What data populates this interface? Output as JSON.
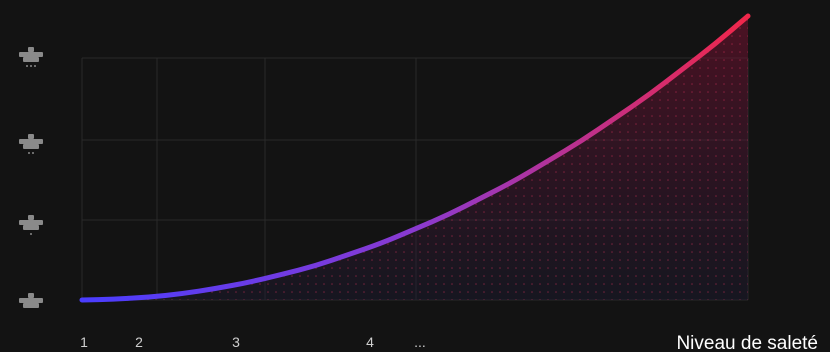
{
  "chart_data": {
    "type": "area",
    "x_tick_labels": [
      "1",
      "2",
      "3",
      "4",
      "..."
    ],
    "x_label": "Niveau de saleté",
    "y_levels": [
      {
        "icon": "spray-head-icon",
        "drops": 0
      },
      {
        "icon": "spray-head-icon",
        "drops": 1
      },
      {
        "icon": "spray-head-icon",
        "drops": 2
      },
      {
        "icon": "spray-head-icon",
        "drops": 3
      }
    ],
    "series": [
      {
        "x": [
          0,
          0.05,
          0.1,
          0.15,
          0.2,
          0.25,
          0.3,
          0.35,
          0.4,
          0.45,
          0.5,
          0.55,
          0.6,
          0.65,
          0.7,
          0.75,
          0.8,
          0.85,
          0.9,
          0.95,
          1
        ],
        "y": [
          0,
          0.003,
          0.01,
          0.022,
          0.04,
          0.062,
          0.09,
          0.12,
          0.16,
          0.2,
          0.25,
          0.3,
          0.36,
          0.42,
          0.49,
          0.56,
          0.64,
          0.72,
          0.81,
          0.9,
          1
        ]
      }
    ],
    "colors": {
      "background": "#131313",
      "grid": "#2a2a2a",
      "line_start": "#4a3dff",
      "line_mid": "#8a3ad0",
      "line_end": "#f0274a",
      "icon": "#8a8a8a",
      "text": "#cfcfcf",
      "title_text": "#ffffff"
    }
  }
}
